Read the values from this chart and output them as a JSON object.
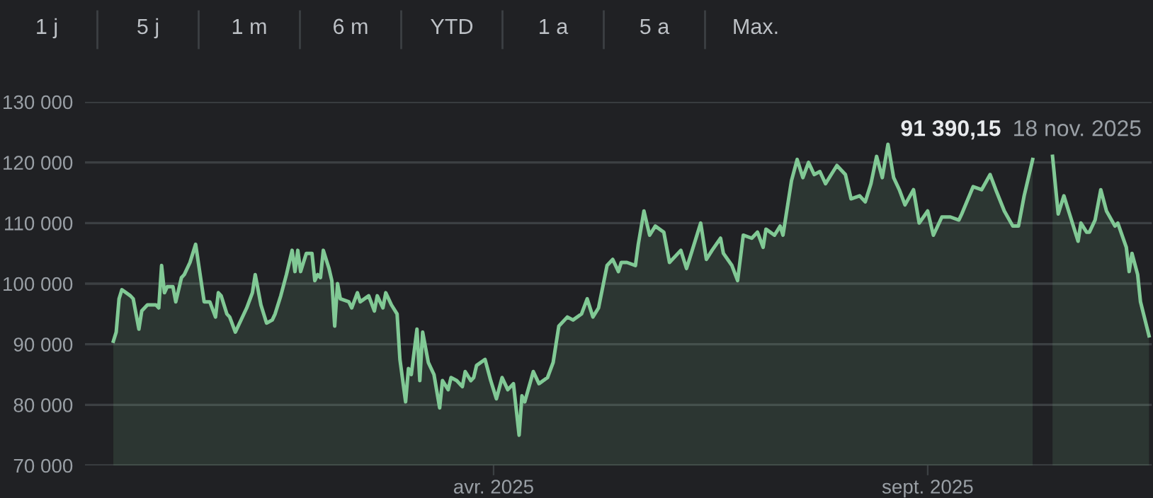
{
  "chart_data": {
    "type": "area",
    "annotations": [
      "1 j",
      "5 j",
      "1 m",
      "6 m",
      "YTD",
      "1 a",
      "5 a",
      "Max.",
      "91 390,15",
      "18 nov. 2025"
    ],
    "x": [
      "2024-11-18",
      "2024-11-19",
      "2024-11-20",
      "2024-11-21",
      "2024-11-24",
      "2024-11-25",
      "2024-11-27",
      "2024-11-28",
      "2024-11-30",
      "2024-12-03",
      "2024-12-04",
      "2024-12-05",
      "2024-12-06",
      "2024-12-07",
      "2024-12-09",
      "2024-12-10",
      "2024-12-12",
      "2024-12-13",
      "2024-12-15",
      "2024-12-17",
      "2024-12-20",
      "2024-12-22",
      "2024-12-24",
      "2024-12-25",
      "2024-12-26",
      "2024-12-28",
      "2024-12-29",
      "2024-12-31",
      "2025-01-04",
      "2025-01-06",
      "2025-01-07",
      "2025-01-09",
      "2025-01-11",
      "2025-01-13",
      "2025-01-14",
      "2025-01-16",
      "2025-01-18",
      "2025-01-20",
      "2025-01-21",
      "2025-01-22",
      "2025-01-23",
      "2025-01-25",
      "2025-01-27",
      "2025-01-28",
      "2025-01-29",
      "2025-01-30",
      "2025-01-31",
      "2025-02-02",
      "2025-02-03",
      "2025-02-04",
      "2025-02-05",
      "2025-02-06",
      "2025-02-09",
      "2025-02-10",
      "2025-02-12",
      "2025-02-13",
      "2025-02-16",
      "2025-02-18",
      "2025-02-19",
      "2025-02-21",
      "2025-02-22",
      "2025-02-24",
      "2025-02-26",
      "2025-02-27",
      "2025-03-01",
      "2025-03-02",
      "2025-03-03",
      "2025-03-05",
      "2025-03-06",
      "2025-03-07",
      "2025-03-09",
      "2025-03-11",
      "2025-03-13",
      "2025-03-14",
      "2025-03-16",
      "2025-03-17",
      "2025-03-19",
      "2025-03-21",
      "2025-03-22",
      "2025-03-24",
      "2025-03-25",
      "2025-03-26",
      "2025-03-29",
      "2025-03-31",
      "2025-04-02",
      "2025-04-04",
      "2025-04-06",
      "2025-04-08",
      "2025-04-10",
      "2025-04-11",
      "2025-04-12",
      "2025-04-15",
      "2025-04-17",
      "2025-04-20",
      "2025-04-22",
      "2025-04-24",
      "2025-04-27",
      "2025-04-29",
      "2025-05-02",
      "2025-05-04",
      "2025-05-06",
      "2025-05-08",
      "2025-05-11",
      "2025-05-13",
      "2025-05-15",
      "2025-05-16",
      "2025-05-18",
      "2025-05-21",
      "2025-05-22",
      "2025-05-24",
      "2025-05-26",
      "2025-05-28",
      "2025-05-31",
      "2025-06-02",
      "2025-06-06",
      "2025-06-08",
      "2025-06-10",
      "2025-06-13",
      "2025-06-15",
      "2025-06-17",
      "2025-06-20",
      "2025-06-21",
      "2025-06-24",
      "2025-06-26",
      "2025-06-28",
      "2025-07-01",
      "2025-07-03",
      "2025-07-05",
      "2025-07-06",
      "2025-07-09",
      "2025-07-11",
      "2025-07-12",
      "2025-07-15",
      "2025-07-17",
      "2025-07-19",
      "2025-07-21",
      "2025-07-23",
      "2025-07-25",
      "2025-07-27",
      "2025-07-29",
      "2025-07-31",
      "2025-08-03",
      "2025-08-05",
      "2025-08-08",
      "2025-08-10",
      "2025-08-12",
      "2025-08-14",
      "2025-08-16",
      "2025-08-18",
      "2025-08-20",
      "2025-08-22",
      "2025-08-24",
      "2025-08-27",
      "2025-08-29",
      "2025-09-01",
      "2025-09-03",
      "2025-09-06",
      "2025-09-09",
      "2025-09-12",
      "2025-09-13",
      "2025-09-17",
      "2025-09-20",
      "2025-09-23",
      "2025-09-25",
      "2025-09-28",
      "2025-10-01",
      "2025-10-03",
      "2025-10-05",
      "2025-10-08",
      "2025-10-11",
      "2025-10-15",
      "2025-10-17",
      "2025-10-19",
      "2025-10-21",
      "2025-10-24",
      "2025-10-25",
      "2025-10-27",
      "2025-10-28",
      "2025-10-30",
      "2025-11-01",
      "2025-11-03",
      "2025-11-06",
      "2025-11-07",
      "2025-11-10",
      "2025-11-11",
      "2025-11-12",
      "2025-11-14",
      "2025-11-15",
      "2025-11-18"
    ],
    "series": [
      {
        "color": "#81c995",
        "values": [
          90500,
          92000,
          97500,
          99000,
          98000,
          97500,
          92500,
          95500,
          96500,
          96500,
          96000,
          103000,
          98500,
          99500,
          99500,
          97000,
          101000,
          101500,
          103500,
          106500,
          97000,
          97000,
          94500,
          98500,
          98000,
          95000,
          94500,
          92000,
          96000,
          98500,
          101500,
          96500,
          93500,
          94000,
          95000,
          98000,
          101500,
          105500,
          102000,
          105500,
          102000,
          105000,
          105000,
          100500,
          101500,
          101000,
          105500,
          102500,
          100500,
          93000,
          100000,
          97500,
          97000,
          96000,
          98500,
          97000,
          98000,
          95500,
          98000,
          96000,
          98500,
          96500,
          95000,
          87500,
          80500,
          86000,
          85000,
          92500,
          84000,
          92000,
          87000,
          85000,
          79500,
          84000,
          82500,
          84500,
          84000,
          83000,
          85500,
          84000,
          84500,
          86500,
          87500,
          84000,
          81000,
          84500,
          82500,
          83500,
          75000,
          81500,
          80500,
          85500,
          83500,
          84500,
          87000,
          93000,
          94500,
          94000,
          95000,
          97500,
          94500,
          96000,
          103000,
          104000,
          102000,
          103500,
          103500,
          103000,
          106500,
          112000,
          108000,
          109500,
          108500,
          103500,
          105500,
          102500,
          105500,
          110000,
          104000,
          105500,
          107500,
          105000,
          103000,
          100500,
          108000,
          107500,
          108500,
          106000,
          109000,
          108000,
          109500,
          108000,
          117000,
          120500,
          117500,
          120000,
          118000,
          118500,
          116500,
          118000,
          119500,
          118000,
          114000,
          114500,
          113500,
          116500,
          121000,
          117500,
          123000,
          117500,
          115500,
          113000,
          115500,
          110000,
          112000,
          108000,
          111000,
          111000,
          110500,
          111500,
          116000,
          115500,
          118000,
          115500,
          112000,
          109500,
          109500,
          114500,
          120500,
          null,
          121000,
          111500,
          114500,
          111500,
          107000,
          110000,
          108500,
          108500,
          110500,
          115500,
          112000,
          109500,
          110000,
          106000,
          102000,
          105000,
          101500,
          97000,
          91390.15
        ]
      }
    ],
    "xlim": [
      "2024-11-08",
      "2025-11-19"
    ],
    "xticks": [
      {
        "value": "2025-04-01",
        "label": "avr. 2025"
      },
      {
        "value": "2025-09-01",
        "label": "sept. 2025"
      }
    ],
    "ylim": [
      70000,
      130000
    ],
    "yticks": [
      {
        "value": 70000,
        "label": "70 000"
      },
      {
        "value": 80000,
        "label": "80 000"
      },
      {
        "value": 90000,
        "label": "90 000"
      },
      {
        "value": 100000,
        "label": "100 000"
      },
      {
        "value": 110000,
        "label": "110 000"
      },
      {
        "value": 120000,
        "label": "120 000"
      },
      {
        "value": 130000,
        "label": "130 000"
      }
    ],
    "grid": "y"
  }
}
